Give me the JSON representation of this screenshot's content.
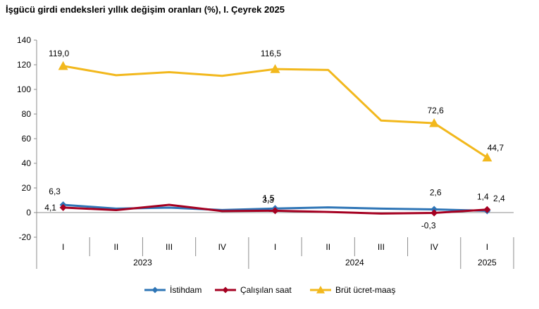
{
  "chart_data": {
    "type": "line",
    "title": "İşgücü girdi endeksleri yıllık değişim oranları (%), I. Çeyrek 2025",
    "quarters": [
      "I",
      "II",
      "III",
      "IV",
      "I",
      "II",
      "III",
      "IV",
      "I"
    ],
    "years": [
      {
        "label": "2023",
        "count": 4
      },
      {
        "label": "2024",
        "count": 4
      },
      {
        "label": "2025",
        "count": 1
      }
    ],
    "ylim": [
      -20,
      140
    ],
    "yticks": [
      -20,
      0,
      20,
      40,
      60,
      80,
      100,
      120,
      140
    ],
    "ytick_labels": [
      "-20",
      "0",
      "20",
      "40",
      "60",
      "80",
      "100",
      "120",
      "140"
    ],
    "grid": false,
    "legend_position": "bottom",
    "series": [
      {
        "name": "İstihdam",
        "color": "#2E75B6",
        "marker": "diamond",
        "values": [
          6.3,
          3.2,
          4.0,
          2.1,
          3.3,
          4.2,
          3.2,
          2.6,
          1.4
        ],
        "labels": [
          {
            "index": 0,
            "text": "6,3"
          },
          {
            "index": 4,
            "text": "3,3"
          },
          {
            "index": 7,
            "text": "2,6"
          },
          {
            "index": 8,
            "text": "1,4"
          }
        ]
      },
      {
        "name": "Çalışılan saat",
        "color": "#A50021",
        "marker": "diamond",
        "values": [
          4.1,
          2.0,
          6.3,
          1.2,
          1.5,
          0.5,
          -0.8,
          -0.3,
          2.4
        ],
        "labels": [
          {
            "index": 0,
            "text": "4,1"
          },
          {
            "index": 4,
            "text": "1,5"
          },
          {
            "index": 7,
            "text": "-0,3"
          },
          {
            "index": 8,
            "text": "2,4"
          }
        ]
      },
      {
        "name": "Brüt ücret-maaş",
        "color": "#F2B81D",
        "marker": "triangle",
        "values": [
          119.0,
          111.5,
          114.0,
          111.0,
          116.5,
          115.8,
          74.7,
          72.6,
          44.7
        ],
        "labels": [
          {
            "index": 0,
            "text": "119,0"
          },
          {
            "index": 4,
            "text": "116,5"
          },
          {
            "index": 7,
            "text": "72,6"
          },
          {
            "index": 8,
            "text": "44,7"
          }
        ]
      }
    ]
  }
}
